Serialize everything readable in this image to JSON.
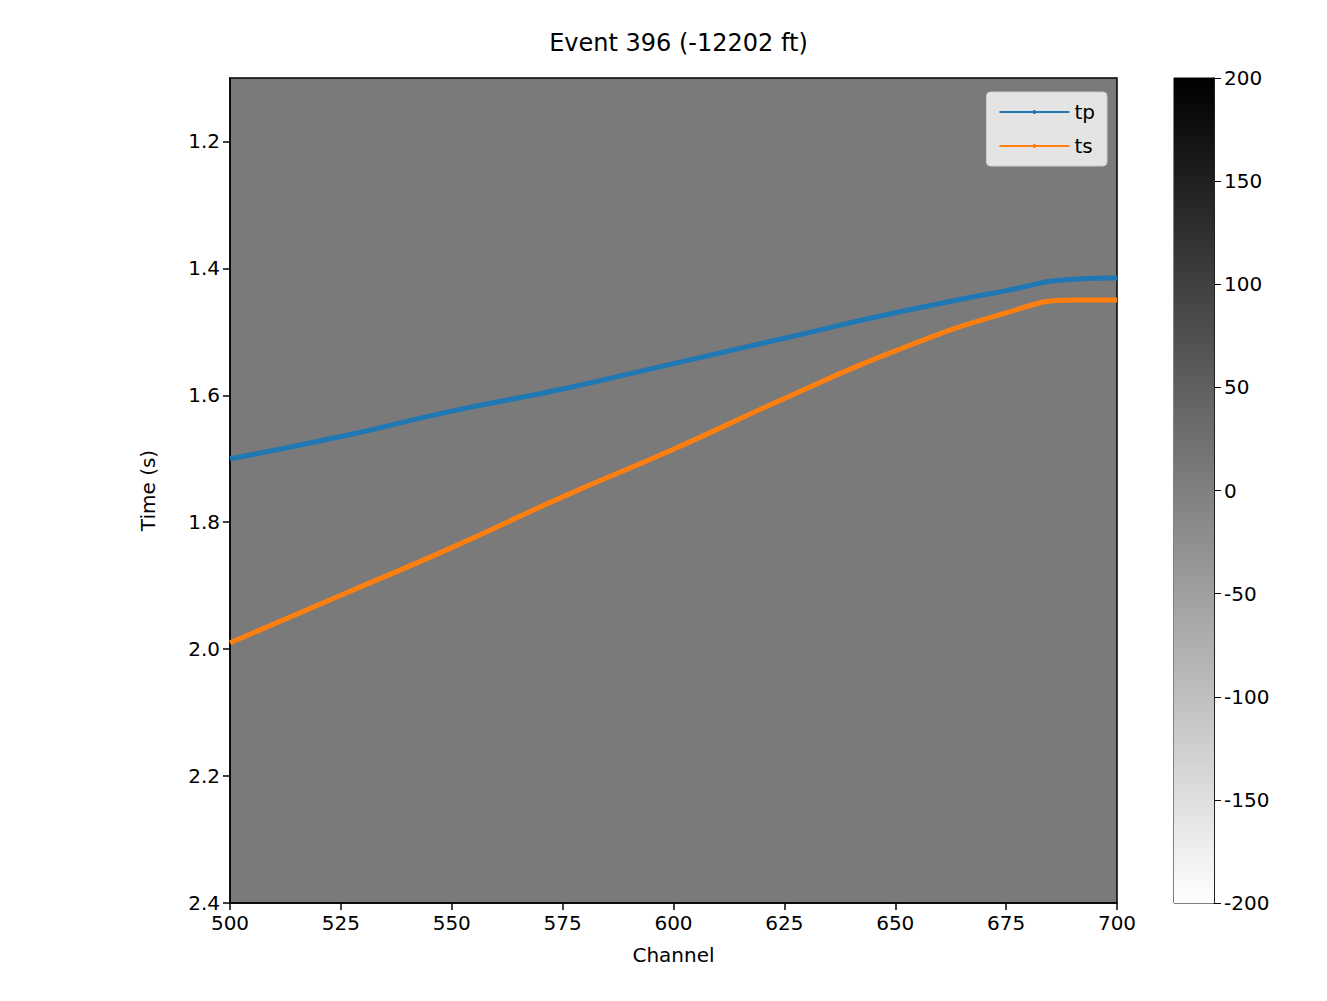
{
  "chart_data": {
    "type": "line",
    "title": "Event 396 (-12202 ft)",
    "x_label": "Channel",
    "y_label": "Time (s)",
    "xlim": [
      500,
      700
    ],
    "xticks": [
      500,
      525,
      550,
      575,
      600,
      625,
      650,
      675,
      700
    ],
    "ylim": [
      2.4,
      1.1
    ],
    "yticks": [
      1.2,
      1.4,
      1.6,
      1.8,
      {
        "value": 2.0,
        "label": "2.0"
      },
      2.2,
      2.4
    ],
    "grid": false,
    "legend": "upper right",
    "x": [
      500,
      525,
      550,
      575,
      600,
      625,
      650,
      675,
      690,
      700
    ],
    "series": [
      {
        "name": "tp",
        "color": "#1f77b4",
        "values": [
          1.7,
          1.665,
          1.625,
          1.59,
          1.55,
          1.51,
          1.47,
          1.435,
          1.417,
          1.415
        ]
      },
      {
        "name": "ts",
        "color": "#ff7f0e",
        "values": [
          1.99,
          1.915,
          1.84,
          1.76,
          1.685,
          1.605,
          1.53,
          1.47,
          1.45,
          1.45
        ]
      }
    ],
    "colorbar": {
      "range": [
        -200,
        200
      ],
      "ticks": [
        -200,
        -150,
        -100,
        -50,
        0,
        50,
        100,
        150,
        200
      ]
    }
  }
}
